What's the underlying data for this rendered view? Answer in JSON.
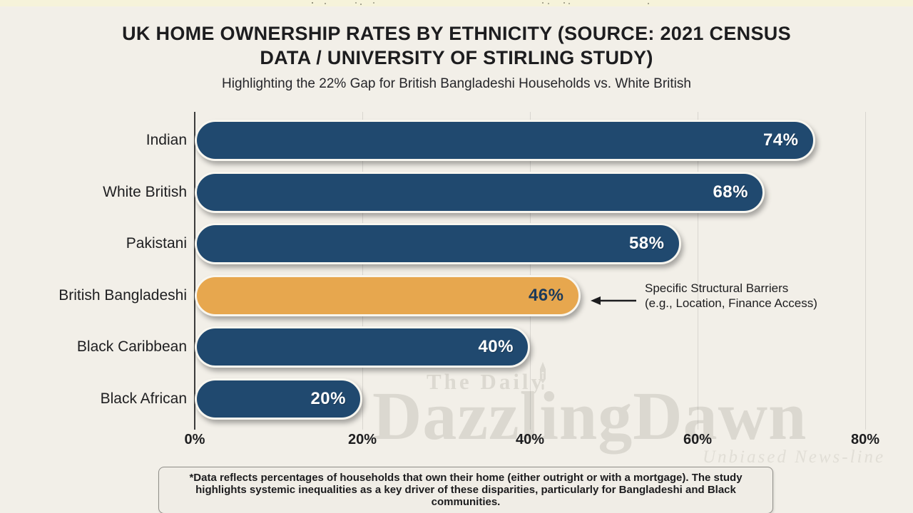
{
  "page": {
    "background": "#f2efe8"
  },
  "header": {
    "title_lines": [
      "UK HOME OWNERSHIP RATES BY ETHNICITY (SOURCE: 2021 CENSUS",
      "DATA / UNIVERSITY OF STIRLING STUDY)"
    ],
    "subtitle": "Highlighting the 22% Gap for British Bangladeshi Households vs. White British"
  },
  "chart_data": {
    "type": "bar",
    "orientation": "horizontal",
    "categories": [
      "Indian",
      "White British",
      "Pakistani",
      "British Bangladeshi",
      "Black Caribbean",
      "Black African"
    ],
    "values": [
      74,
      68,
      58,
      46,
      40,
      20
    ],
    "value_labels": [
      "74%",
      "68%",
      "58%",
      "46%",
      "40%",
      "20%"
    ],
    "highlight_index": 3,
    "bar_color": "#20496f",
    "highlight_color": "#e7a74e",
    "value_label_color": "#ffffff",
    "highlight_value_label_color": "#1c3a5a",
    "xlim": [
      0,
      80
    ],
    "x_ticks": [
      {
        "value": 0,
        "label": "0%"
      },
      {
        "value": 20,
        "label": "20%"
      },
      {
        "value": 40,
        "label": "40%"
      },
      {
        "value": 60,
        "label": "60%"
      },
      {
        "value": 80,
        "label": "80%"
      }
    ],
    "grid": true,
    "legend": "none",
    "annotation": {
      "target": "British Bangladeshi",
      "line1": "Specific Structural Barriers",
      "line2": "(e.g., Location, Finance Access)"
    }
  },
  "footnote": "*Data reflects percentages of households that own their home (either outright or with a mortgage). The study highlights systemic inequalities as a key driver of these disparities, particularly for Bangladeshi and Black communities.",
  "watermark": {
    "line1": "The Daily",
    "line2": "DazzlingDawn",
    "tagline": "Unbiased News-line",
    "icon": "pen-nib-icon"
  }
}
